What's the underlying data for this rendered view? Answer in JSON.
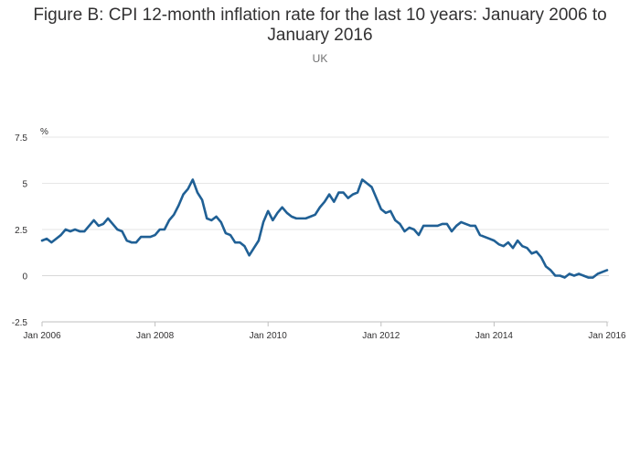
{
  "header": {
    "title_line1": "Figure B: CPI 12-month inflation rate for the last 10 years: January 2006 to",
    "title_line2": "January 2016",
    "subtitle": "UK"
  },
  "chart_data": {
    "type": "line",
    "title": "Figure B: CPI 12-month inflation rate for the last 10 years: January 2006 to January 2016",
    "subtitle": "UK",
    "ylabel": "%",
    "xlabel": "",
    "ylim": [
      -2.5,
      7.5
    ],
    "yticks": [
      -2.5,
      0,
      2.5,
      5,
      7.5
    ],
    "ytick_labels": [
      "-2.5",
      "0",
      "2.5",
      "5",
      "7.5"
    ],
    "xlim": [
      "Jan 2006",
      "Jan 2016"
    ],
    "xtick_labels": [
      "Jan 2006",
      "Jan 2008",
      "Jan 2010",
      "Jan 2012",
      "Jan 2014",
      "Jan 2016"
    ],
    "grid": true,
    "line_color": "#206095",
    "series": [
      {
        "values": [
          1.9,
          2.0,
          1.8,
          2.0,
          2.2,
          2.5,
          2.4,
          2.5,
          2.4,
          2.4,
          2.7,
          3.0,
          2.7,
          2.8,
          3.1,
          2.8,
          2.5,
          2.4,
          1.9,
          1.8,
          1.8,
          2.1,
          2.1,
          2.1,
          2.2,
          2.5,
          2.5,
          3.0,
          3.3,
          3.8,
          4.4,
          4.7,
          5.2,
          4.5,
          4.1,
          3.1,
          3.0,
          3.2,
          2.9,
          2.3,
          2.2,
          1.8,
          1.8,
          1.6,
          1.1,
          1.5,
          1.9,
          2.9,
          3.5,
          3.0,
          3.4,
          3.7,
          3.4,
          3.2,
          3.1,
          3.1,
          3.1,
          3.2,
          3.3,
          3.7,
          4.0,
          4.4,
          4.0,
          4.5,
          4.5,
          4.2,
          4.4,
          4.5,
          5.2,
          5.0,
          4.8,
          4.2,
          3.6,
          3.4,
          3.5,
          3.0,
          2.8,
          2.4,
          2.6,
          2.5,
          2.2,
          2.7,
          2.7,
          2.7,
          2.7,
          2.8,
          2.8,
          2.4,
          2.7,
          2.9,
          2.8,
          2.7,
          2.7,
          2.2,
          2.1,
          2.0,
          1.9,
          1.7,
          1.6,
          1.8,
          1.5,
          1.9,
          1.6,
          1.5,
          1.2,
          1.3,
          1.0,
          0.5,
          0.3,
          0.0,
          0.0,
          -0.1,
          0.1,
          0.0,
          0.1,
          0.0,
          -0.1,
          -0.1,
          0.1,
          0.2,
          0.3
        ]
      }
    ]
  }
}
